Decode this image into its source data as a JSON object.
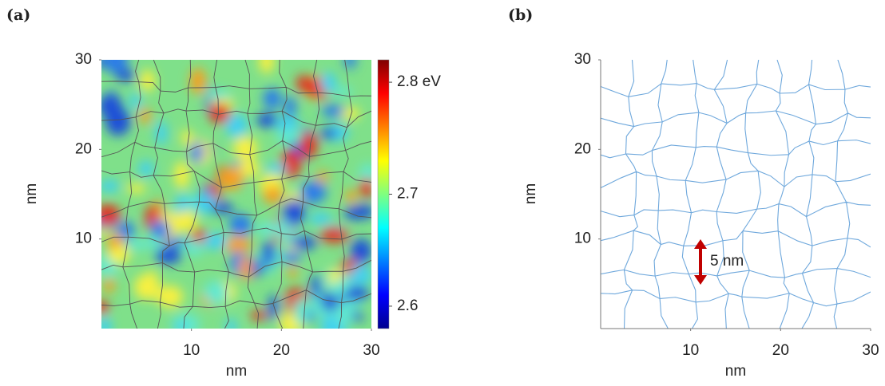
{
  "chart_data": [
    {
      "type": "heatmap",
      "panel": "(a)",
      "xlabel": "nm",
      "ylabel": "nm",
      "xlim": [
        0,
        30
      ],
      "ylim": [
        0,
        30
      ],
      "xticks": [
        10,
        20,
        30
      ],
      "yticks": [
        10,
        20,
        30
      ],
      "colormap": "jet",
      "clim": [
        2.58,
        2.82
      ],
      "cticks": [
        {
          "value": 2.8,
          "label": "2.8 eV"
        },
        2.7,
        2.6
      ],
      "boundary_color": "#555555"
    },
    {
      "type": "boundary-map",
      "panel": "(b)",
      "xlabel": "nm",
      "ylabel": "nm",
      "xlim": [
        0,
        30
      ],
      "ylim": [
        0,
        30
      ],
      "xticks": [
        10,
        20,
        30
      ],
      "yticks": [
        10,
        20,
        30
      ],
      "boundary_color": "#6fa8dc",
      "annotation": "5 nm",
      "annotation_color": "#c00000"
    }
  ]
}
